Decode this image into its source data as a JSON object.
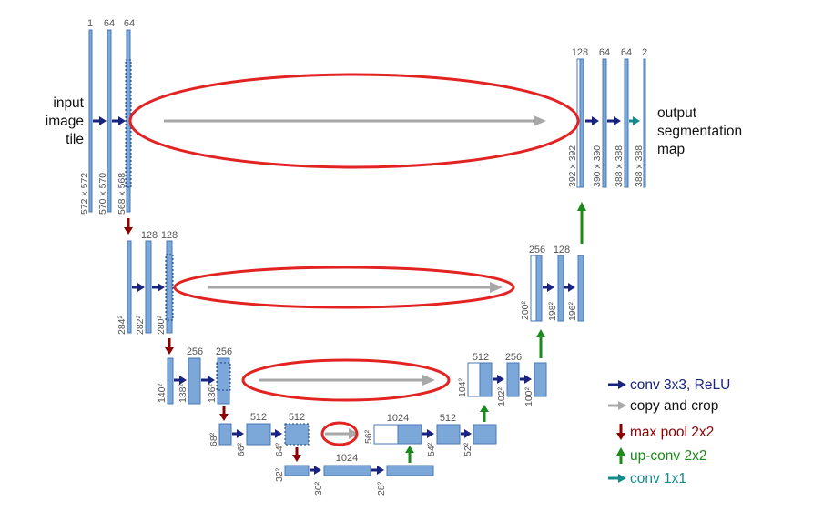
{
  "labels": {
    "input_line1": "input",
    "input_line2": "image",
    "input_line3": "tile",
    "output_line1": "output",
    "output_line2": "segmentation",
    "output_line3": "map"
  },
  "channels": {
    "l1_a": "1",
    "l1_b": "64",
    "l1_c": "64",
    "l2_a": "128",
    "l2_b": "128",
    "l3_a": "256",
    "l3_b": "256",
    "l4_a": "512",
    "l4_b": "512",
    "l5_a": "1024",
    "u4_a": "1024",
    "u4_b": "512",
    "u3_a": "512",
    "u3_b": "256",
    "u2_a": "256",
    "u2_b": "128",
    "u1_a": "128",
    "u1_b": "64",
    "u1_c": "64",
    "u1_d": "2"
  },
  "dims": {
    "l1_a": "572 x 572",
    "l1_b": "570 x 570",
    "l1_c": "568 x 568",
    "l2_a": "284²",
    "l2_b": "282²",
    "l2_c": "280²",
    "l3_a": "140²",
    "l3_b": "138²",
    "l3_c": "136²",
    "l4_a": "68²",
    "l4_b": "66²",
    "l4_c": "64²",
    "l5_a": "32²",
    "l5_b": "30²",
    "l5_c": "28²",
    "u4_a": "56²",
    "u4_b": "54²",
    "u4_c": "52²",
    "u3_a": "104²",
    "u3_b": "102²",
    "u3_c": "100²",
    "u2_a": "200²",
    "u2_b": "198²",
    "u2_c": "196²",
    "u1_a": "392 x 392",
    "u1_b": "390 x 390",
    "u1_c": "388 x 388",
    "u1_d": "388 x 388"
  },
  "legend": [
    {
      "label": "conv 3x3, ReLU",
      "color": "#1a237e",
      "arrow": "right"
    },
    {
      "label": "copy and crop",
      "color": "#9e9e9e",
      "arrow": "right"
    },
    {
      "label": "max pool 2x2",
      "color": "#8b0000",
      "arrow": "down"
    },
    {
      "label": "up-conv 2x2",
      "color": "#1a8a1a",
      "arrow": "up"
    },
    {
      "label": "conv 1x1",
      "color": "#138b8b",
      "arrow": "right"
    }
  ],
  "colors": {
    "map_fill": "#7ba7d9",
    "map_stroke": "#4a7ab5",
    "ellipse": "#e32222",
    "conv": "#1a237e",
    "copy": "#a8a8a8",
    "pool": "#8b0000",
    "upconv": "#1a8a1a",
    "conv1x1": "#138b8b"
  }
}
